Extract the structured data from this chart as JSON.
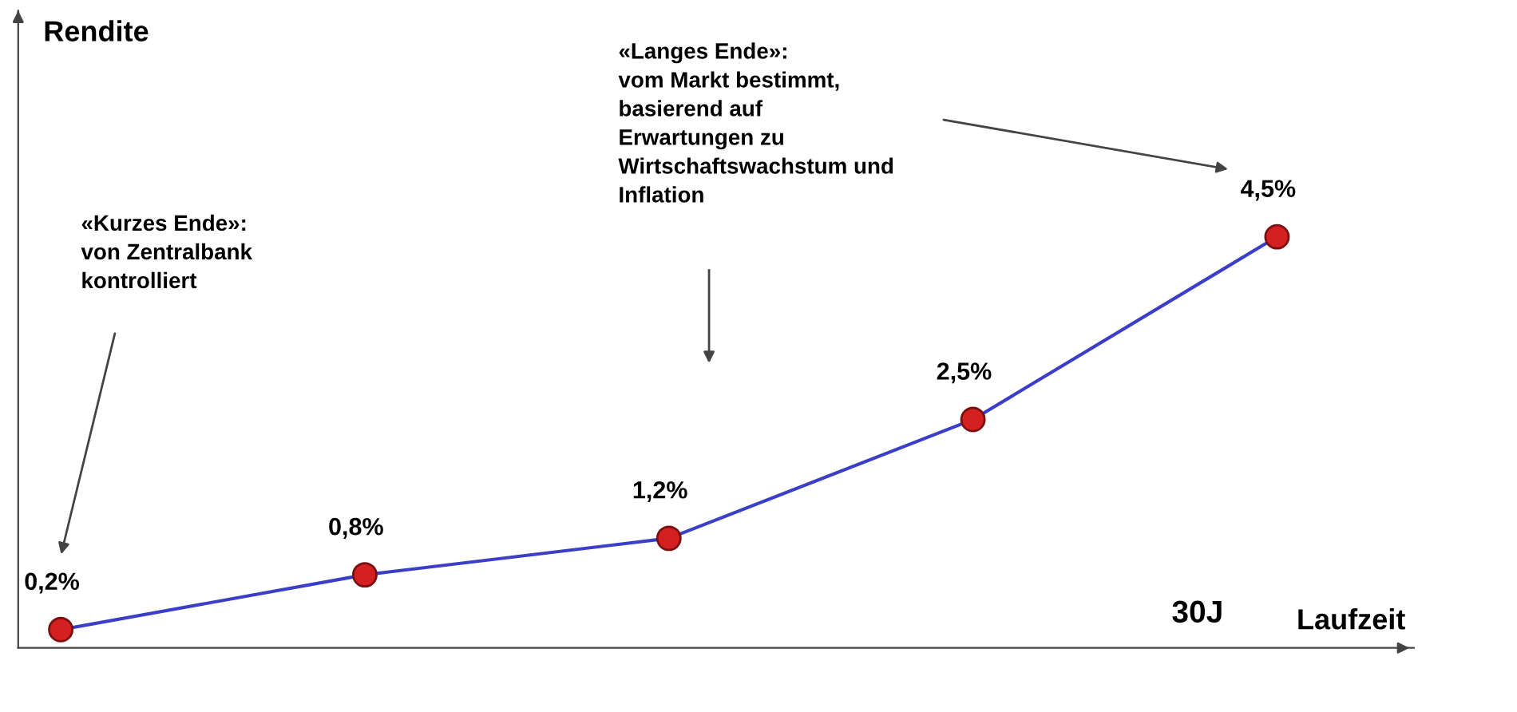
{
  "chart_data": {
    "type": "line",
    "xlabel": "Laufzeit",
    "categories": [
      null,
      null,
      null,
      null,
      null
    ],
    "series": [
      {
        "color": "#3b3fc8",
        "colors": [
          "#d42020",
          "#d42020",
          "#d42020",
          "#d42020",
          "#d42020"
        ],
        "values": [
          0.2,
          0.8,
          1.2,
          2.5,
          4.5
        ],
        "value_labels": [
          "0,2%",
          "0,8%",
          "1,2%",
          "2,5%",
          "4,5%"
        ]
      }
    ],
    "marker": "circle",
    "annotations": [
      "Rendite",
      "«Kurzes Ende»:\nvon Zentralbank\nkontrolliert",
      "«Langes Ende»:\nvom Markt bestimmt,\nbasierend auf\nErwartungen zu\nWirtschaftswachstum und\nInflation",
      "30J"
    ]
  }
}
